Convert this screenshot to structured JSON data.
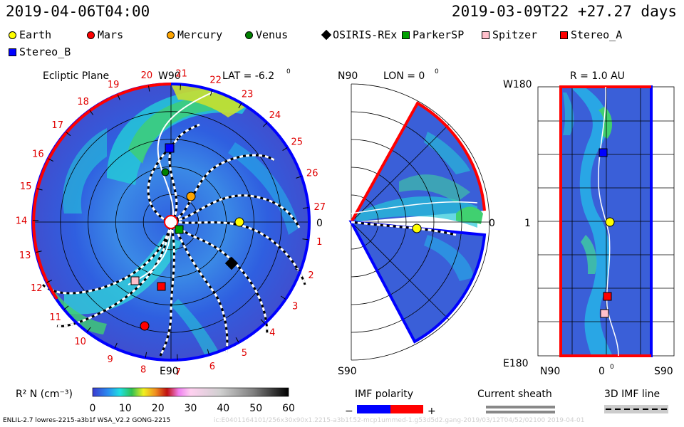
{
  "header": {
    "left_time": "2019-04-06T04:00",
    "right_time": "2019-03-09T22 +27.27 days"
  },
  "legend": [
    {
      "label": "Earth",
      "shape": "circle",
      "color": "#ffff00"
    },
    {
      "label": "Mars",
      "shape": "circle",
      "color": "#ff0000"
    },
    {
      "label": "Mercury",
      "shape": "circle",
      "color": "#ffa500"
    },
    {
      "label": "Venus",
      "shape": "circle",
      "color": "#008000"
    },
    {
      "label": "OSIRIS-REx",
      "shape": "diamond",
      "color": "#000000"
    },
    {
      "label": "ParkerSP",
      "shape": "square",
      "color": "#00a000"
    },
    {
      "label": "Spitzer",
      "shape": "square",
      "color": "#ffc0cb"
    },
    {
      "label": "Stereo_A",
      "shape": "square",
      "color": "#ff0000"
    },
    {
      "label": "Stereo_B",
      "shape": "square",
      "color": "#0000ff"
    }
  ],
  "ecliptic": {
    "title": "Ecliptic Plane",
    "top_label": "W90",
    "lat_label": "LAT = -6.2",
    "degree_sign": "0",
    "bottom_label": "E90",
    "right_label": "0",
    "carrington_ticks": [
      "1",
      "2",
      "3",
      "4",
      "5",
      "6",
      "7",
      "8",
      "9",
      "10",
      "11",
      "12",
      "13",
      "14",
      "15",
      "16",
      "17",
      "18",
      "19",
      "20",
      "21",
      "22",
      "23",
      "24",
      "25",
      "26",
      "27"
    ]
  },
  "meridional": {
    "top_label": "N90",
    "lon_label": "LON = 0",
    "bottom_label": "S90",
    "right_label": "0"
  },
  "radial": {
    "r_label": "R = 1.0 AU",
    "top_left": "W180",
    "mid_left": "1",
    "bottom_left": "E180",
    "x_left": "N90",
    "x_mid": "0",
    "x_right": "S90"
  },
  "colorbar": {
    "label": "R² N (cm⁻³)",
    "ticks": [
      "0",
      "10",
      "20",
      "30",
      "40",
      "50",
      "60"
    ]
  },
  "imf_polarity": {
    "label": "IMF polarity",
    "minus": "−",
    "plus": "+"
  },
  "current_sheath": {
    "label": "Current sheath"
  },
  "imf_line": {
    "label": "3D IMF line"
  },
  "footer": {
    "left": "ENLIL-2.7 lowres-2215-a3b1f WSA_V2.2 GONG-2215",
    "right": "ic:E0401164101/256x30x90x1.2215-a3b1f.52-mcp1ummed-1.g53d5d2.gang-2019/03/12T04/52/02100   2019-04-01"
  },
  "chart_data": [
    {
      "type": "heatmap",
      "title": "Ecliptic Plane",
      "projection": "polar",
      "lat": -6.2,
      "units": "R² N (cm⁻³)",
      "range": [
        0,
        60
      ],
      "bodies": [
        {
          "name": "Earth",
          "lon_deg": 0,
          "r_au": 1.0
        },
        {
          "name": "Mercury",
          "lon_deg": 30,
          "r_au": 0.4
        },
        {
          "name": "Venus",
          "lon_deg": 80,
          "r_au": 0.72
        },
        {
          "name": "Mars",
          "lon_deg": -105,
          "r_au": 1.45
        },
        {
          "name": "OSIRIS-REx",
          "lon_deg": -40,
          "r_au": 1.2
        },
        {
          "name": "ParkerSP",
          "lon_deg": -35,
          "r_au": 0.14
        },
        {
          "name": "Spitzer",
          "lon_deg": -140,
          "r_au": 1.0
        },
        {
          "name": "Stereo_A",
          "lon_deg": -103,
          "r_au": 0.96
        },
        {
          "name": "Stereo_B",
          "lon_deg": 90,
          "r_au": 1.03
        }
      ]
    },
    {
      "type": "heatmap",
      "title": "LON = 0",
      "projection": "meridional",
      "range": [
        0,
        60
      ]
    },
    {
      "type": "heatmap",
      "title": "R = 1.0 AU",
      "projection": "lat-lon",
      "range": [
        0,
        60
      ]
    }
  ]
}
